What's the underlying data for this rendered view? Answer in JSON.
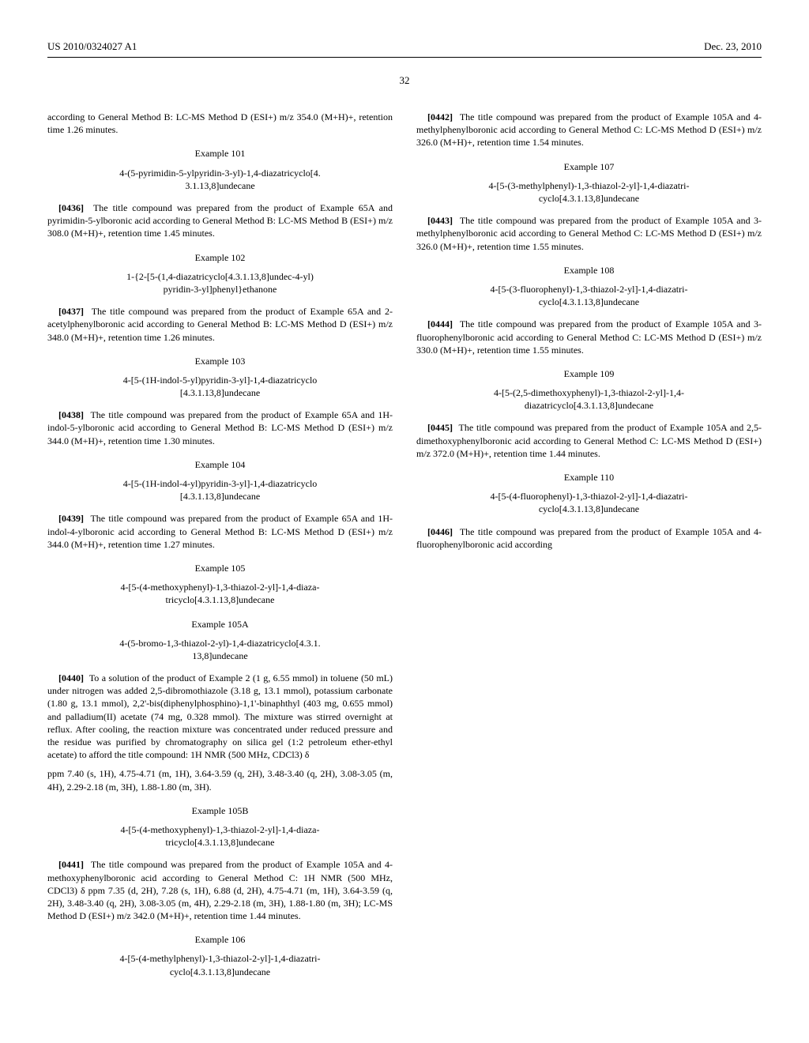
{
  "header": {
    "pub_number": "US 2010/0324027 A1",
    "pub_date": "Dec. 23, 2010",
    "page_number": "32"
  },
  "left": {
    "intro_para": "according to General Method B: LC-MS Method D (ESI+) m/z 354.0 (M+H)+, retention time 1.26 minutes.",
    "ex101": {
      "heading": "Example 101",
      "title_line1": "4-(5-pyrimidin-5-ylpyridin-3-yl)-1,4-diazatricyclo[4.",
      "title_line2": "3.1.13,8]undecane",
      "para_num": "[0436]",
      "para_text": "The title compound was prepared from the product of Example 65A and pyrimidin-5-ylboronic acid according to General Method B: LC-MS Method B (ESI+) m/z 308.0 (M+H)+, retention time 1.45 minutes."
    },
    "ex102": {
      "heading": "Example 102",
      "title_line1": "1-{2-[5-(1,4-diazatricyclo[4.3.1.13,8]undec-4-yl)",
      "title_line2": "pyridin-3-yl]phenyl}ethanone",
      "para_num": "[0437]",
      "para_text": "The title compound was prepared from the product of Example 65A and 2-acetylphenylboronic acid according to General Method B: LC-MS Method D (ESI+) m/z 348.0 (M+H)+, retention time 1.26 minutes."
    },
    "ex103": {
      "heading": "Example 103",
      "title_line1": "4-[5-(1H-indol-5-yl)pyridin-3-yl]-1,4-diazatricyclo",
      "title_line2": "[4.3.1.13,8]undecane",
      "para_num": "[0438]",
      "para_text": "The title compound was prepared from the product of Example 65A and 1H-indol-5-ylboronic acid according to General Method B: LC-MS Method D (ESI+) m/z 344.0 (M+H)+, retention time 1.30 minutes."
    },
    "ex104": {
      "heading": "Example 104",
      "title_line1": "4-[5-(1H-indol-4-yl)pyridin-3-yl]-1,4-diazatricyclo",
      "title_line2": "[4.3.1.13,8]undecane",
      "para_num": "[0439]",
      "para_text": "The title compound was prepared from the product of Example 65A and 1H-indol-4-ylboronic acid according to General Method B: LC-MS Method D (ESI+) m/z 344.0 (M+H)+, retention time 1.27 minutes."
    },
    "ex105": {
      "heading": "Example 105",
      "title_line1": "4-[5-(4-methoxyphenyl)-1,3-thiazol-2-yl]-1,4-diaza-",
      "title_line2": "tricyclo[4.3.1.13,8]undecane"
    },
    "ex105A": {
      "heading": "Example 105A",
      "title_line1": "4-(5-bromo-1,3-thiazol-2-yl)-1,4-diazatricyclo[4.3.1.",
      "title_line2": "13,8]undecane",
      "para_num": "[0440]",
      "para_text": "To a solution of the product of Example 2 (1 g, 6.55 mmol) in toluene (50 mL) under nitrogen was added 2,5-dibromothiazole (3.18 g, 13.1 mmol), potassium carbonate (1.80 g, 13.1 mmol), 2,2'-bis(diphenylphosphino)-1,1'-binaphthyl (403 mg, 0.655 mmol) and palladium(II) acetate (74 mg, 0.328 mmol). The mixture was stirred overnight at reflux. After cooling, the reaction mixture was concentrated under reduced pressure and the residue was purified by chromatography on silica gel (1:2 petroleum ether-ethyl acetate) to afford the title compound: 1H NMR (500 MHz, CDCl3) δ"
    }
  },
  "right": {
    "cont_para": "ppm 7.40 (s, 1H), 4.75-4.71 (m, 1H), 3.64-3.59 (q, 2H), 3.48-3.40 (q, 2H), 3.08-3.05 (m, 4H), 2.29-2.18 (m, 3H), 1.88-1.80 (m, 3H).",
    "ex105B": {
      "heading": "Example 105B",
      "title_line1": "4-[5-(4-methoxyphenyl)-1,3-thiazol-2-yl]-1,4-diaza-",
      "title_line2": "tricyclo[4.3.1.13,8]undecane",
      "para_num": "[0441]",
      "para_text": "The title compound was prepared from the product of Example 105A and 4-methoxyphenylboronic acid according to General Method C: 1H NMR (500 MHz, CDCl3) δ ppm 7.35 (d, 2H), 7.28 (s, 1H), 6.88 (d, 2H), 4.75-4.71 (m, 1H), 3.64-3.59 (q, 2H), 3.48-3.40 (q, 2H), 3.08-3.05 (m, 4H), 2.29-2.18 (m, 3H), 1.88-1.80 (m, 3H); LC-MS Method D (ESI+) m/z 342.0 (M+H)+, retention time 1.44 minutes."
    },
    "ex106": {
      "heading": "Example 106",
      "title_line1": "4-[5-(4-methylphenyl)-1,3-thiazol-2-yl]-1,4-diazatri-",
      "title_line2": "cyclo[4.3.1.13,8]undecane",
      "para_num": "[0442]",
      "para_text": "The title compound was prepared from the product of Example 105A and 4-methylphenylboronic acid according to General Method C: LC-MS Method D (ESI+) m/z 326.0 (M+H)+, retention time 1.54 minutes."
    },
    "ex107": {
      "heading": "Example 107",
      "title_line1": "4-[5-(3-methylphenyl)-1,3-thiazol-2-yl]-1,4-diazatri-",
      "title_line2": "cyclo[4.3.1.13,8]undecane",
      "para_num": "[0443]",
      "para_text": "The title compound was prepared from the product of Example 105A and 3-methylphenylboronic acid according to General Method C: LC-MS Method D (ESI+) m/z 326.0 (M+H)+, retention time 1.55 minutes."
    },
    "ex108": {
      "heading": "Example 108",
      "title_line1": "4-[5-(3-fluorophenyl)-1,3-thiazol-2-yl]-1,4-diazatri-",
      "title_line2": "cyclo[4.3.1.13,8]undecane",
      "para_num": "[0444]",
      "para_text": "The title compound was prepared from the product of Example 105A and 3-fluorophenylboronic acid according to General Method C: LC-MS Method D (ESI+) m/z 330.0 (M+H)+, retention time 1.55 minutes."
    },
    "ex109": {
      "heading": "Example 109",
      "title_line1": "4-[5-(2,5-dimethoxyphenyl)-1,3-thiazol-2-yl]-1,4-",
      "title_line2": "diazatricyclo[4.3.1.13,8]undecane",
      "para_num": "[0445]",
      "para_text": "The title compound was prepared from the product of Example 105A and 2,5-dimethoxyphenylboronic acid according to General Method C: LC-MS Method D (ESI+) m/z 372.0 (M+H)+, retention time 1.44 minutes."
    },
    "ex110": {
      "heading": "Example 110",
      "title_line1": "4-[5-(4-fluorophenyl)-1,3-thiazol-2-yl]-1,4-diazatri-",
      "title_line2": "cyclo[4.3.1.13,8]undecane",
      "para_num": "[0446]",
      "para_text": "The title compound was prepared from the product of Example 105A and 4-fluorophenylboronic acid according"
    }
  }
}
